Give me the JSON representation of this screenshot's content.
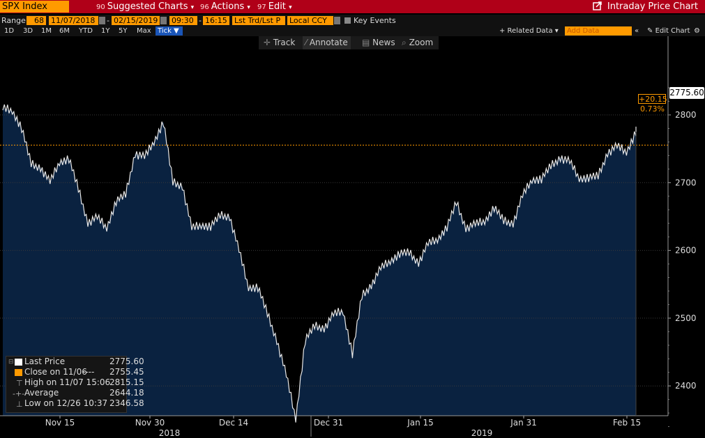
{
  "toolbar": {
    "ticker": "SPX Index",
    "suggested_num": "90",
    "suggested": "Suggested Charts",
    "actions_num": "96",
    "actions": "Actions",
    "edit_num": "97",
    "edit": "Edit",
    "title": "Intraday Price Chart",
    "arrow": "▾"
  },
  "range": {
    "label": "Range",
    "days": "68",
    "start": "11/07/2018",
    "sep": "-",
    "end": "02/15/2019",
    "t_start": "09:30",
    "t_sep": "-",
    "t_end": "16:15",
    "source": "Lst Trd/Lst P",
    "currency": "Local CCY",
    "key_events": "Key Events"
  },
  "periods": [
    "1D",
    "3D",
    "1M",
    "6M",
    "YTD",
    "1Y",
    "5Y",
    "Max"
  ],
  "tick_label": "Tick ▼",
  "related": "+ Related Data ▾",
  "add_data_placeholder": "Add Data",
  "edit_chart": "Edit Chart",
  "chart_tools": [
    "Track",
    "Annotate",
    "News",
    "Zoom"
  ],
  "legend": {
    "last_price_label": "Last Price",
    "last_price_value": "2775.60",
    "close_label": "Close on 11/06",
    "close_dashes": "----",
    "close_value": "2755.45",
    "high_label": "High on 11/07 15:06",
    "high_value": "2815.15",
    "avg_label": "Average",
    "avg_value": "2644.18",
    "low_label": "Low on 12/26 10:37",
    "low_value": "2346.58"
  },
  "badges": {
    "last": "2775.60",
    "change": "+20.15",
    "pct": "0.73%"
  },
  "colors": {
    "area": "#0a2240",
    "price": "#e8e8e8",
    "ref_line": "#ff9a00",
    "accent": "#b00018"
  },
  "chart_data": {
    "type": "line",
    "title": "SPX Index",
    "ylim": [
      2320,
      2860
    ],
    "yticks": [
      2400,
      2500,
      2600,
      2700,
      2800
    ],
    "xtick_labels": [
      "Nov 15",
      "Nov 30",
      "Dec 14",
      "Dec 31",
      "Jan 15",
      "Jan 31",
      "Feb 15"
    ],
    "year_labels": [
      "2018",
      "2019"
    ],
    "reference_close": 2755.45,
    "series": [
      {
        "x": [
          "11/07",
          "11/08",
          "11/09",
          "11/12",
          "11/13",
          "11/14",
          "11/15",
          "11/16",
          "11/19",
          "11/20",
          "11/21",
          "11/23",
          "11/26",
          "11/27",
          "11/28",
          "11/29",
          "11/30",
          "12/03",
          "12/04",
          "12/06",
          "12/07",
          "12/10",
          "12/11",
          "12/12",
          "12/13",
          "12/14",
          "12/17",
          "12/18",
          "12/19",
          "12/20",
          "12/21",
          "12/24",
          "12/26",
          "12/27",
          "12/28",
          "12/31",
          "01/02",
          "01/03",
          "01/04",
          "01/07",
          "01/08",
          "01/09",
          "01/10",
          "01/11",
          "01/14",
          "01/15",
          "01/16",
          "01/17",
          "01/18",
          "01/22",
          "01/23",
          "01/24",
          "01/25",
          "01/28",
          "01/29",
          "01/30",
          "01/31",
          "02/01",
          "02/04",
          "02/05",
          "02/06",
          "02/07",
          "02/08",
          "02/11",
          "02/12",
          "02/13",
          "02/14",
          "02/15"
        ],
        "values": [
          2810,
          2806,
          2781,
          2727,
          2722,
          2701,
          2730,
          2736,
          2690,
          2641,
          2649,
          2633,
          2673,
          2682,
          2743,
          2738,
          2760,
          2790,
          2700,
          2695,
          2633,
          2637,
          2636,
          2651,
          2650,
          2600,
          2545,
          2546,
          2506,
          2467,
          2416,
          2351,
          2468,
          2488,
          2485,
          2506,
          2510,
          2448,
          2532,
          2549,
          2574,
          2584,
          2596,
          2596,
          2582,
          2610,
          2616,
          2635,
          2670,
          2633,
          2639,
          2643,
          2664,
          2643,
          2640,
          2681,
          2704,
          2706,
          2724,
          2737,
          2731,
          2706,
          2708,
          2709,
          2744,
          2754,
          2745,
          2775.6
        ]
      }
    ]
  }
}
